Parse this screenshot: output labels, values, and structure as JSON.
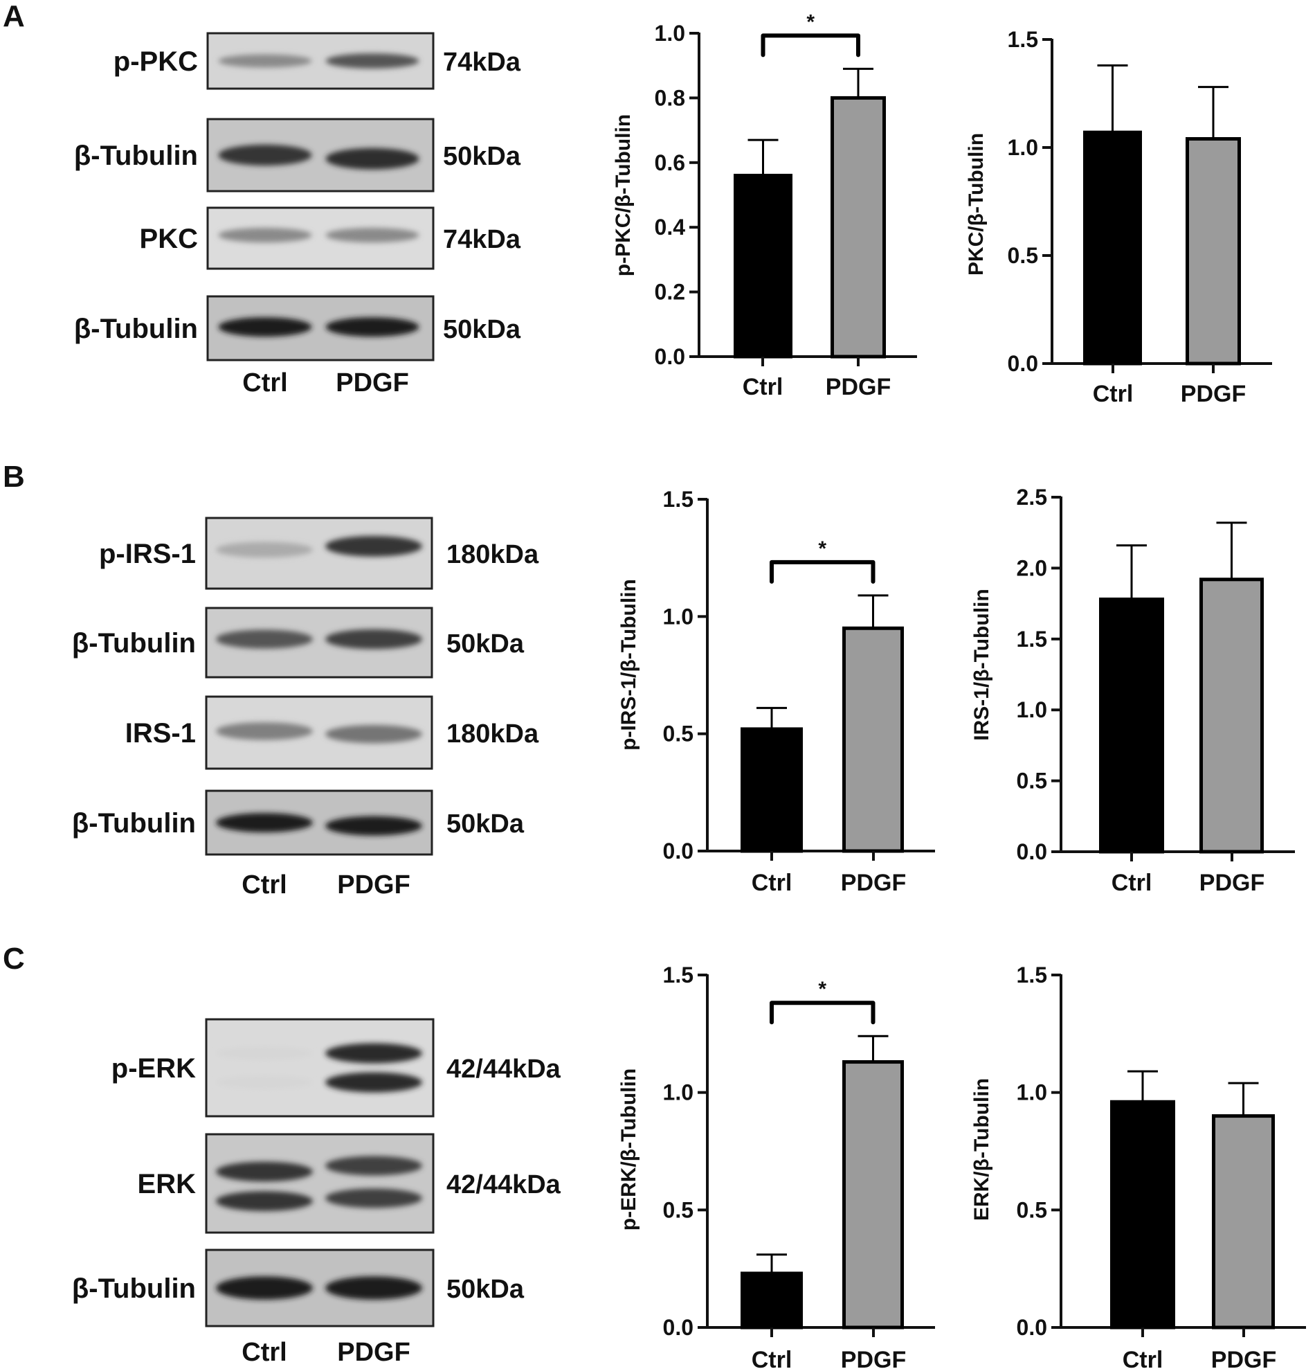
{
  "panels": [
    {
      "letter": "A",
      "blot": {
        "rows": [
          {
            "protein": "p-PKC",
            "mw": "74kDa",
            "lanes": [
              {
                "intensity": 0.45,
                "bands": [
                  0.5
                ]
              },
              {
                "intensity": 0.7,
                "bands": [
                  0.5
                ]
              }
            ]
          },
          {
            "protein": "β-Tubulin",
            "mw": "50kDa",
            "lanes": [
              {
                "intensity": 0.85,
                "bands": [
                  0.5
                ]
              },
              {
                "intensity": 0.88,
                "bands": [
                  0.55
                ]
              }
            ]
          },
          {
            "protein": "PKC",
            "mw": "74kDa",
            "lanes": [
              {
                "intensity": 0.45,
                "bands": [
                  0.45
                ]
              },
              {
                "intensity": 0.45,
                "bands": [
                  0.45
                ]
              }
            ]
          },
          {
            "protein": "β-Tubulin",
            "mw": "50kDa",
            "lanes": [
              {
                "intensity": 0.95,
                "bands": [
                  0.48
                ]
              },
              {
                "intensity": 0.95,
                "bands": [
                  0.48
                ]
              }
            ]
          }
        ],
        "lane_labels": [
          "Ctrl",
          "PDGF"
        ]
      }
    },
    {
      "letter": "B",
      "blot": {
        "rows": [
          {
            "protein": "p-IRS-1",
            "mw": "180kDa",
            "lanes": [
              {
                "intensity": 0.3,
                "bands": [
                  0.45
                ]
              },
              {
                "intensity": 0.85,
                "bands": [
                  0.4
                ]
              }
            ]
          },
          {
            "protein": "β-Tubulin",
            "mw": "50kDa",
            "lanes": [
              {
                "intensity": 0.7,
                "bands": [
                  0.45
                ]
              },
              {
                "intensity": 0.8,
                "bands": [
                  0.45
                ]
              }
            ]
          },
          {
            "protein": "IRS-1",
            "mw": "180kDa",
            "lanes": [
              {
                "intensity": 0.5,
                "bands": [
                  0.48
                ]
              },
              {
                "intensity": 0.55,
                "bands": [
                  0.52
                ]
              }
            ]
          },
          {
            "protein": "β-Tubulin",
            "mw": "50kDa",
            "lanes": [
              {
                "intensity": 0.95,
                "bands": [
                  0.5
                ]
              },
              {
                "intensity": 0.95,
                "bands": [
                  0.55
                ]
              }
            ]
          }
        ],
        "lane_labels": [
          "Ctrl",
          "PDGF"
        ]
      }
    },
    {
      "letter": "C",
      "blot": {
        "rows": [
          {
            "protein": "p-ERK",
            "mw": "42/44kDa",
            "lanes": [
              {
                "intensity": 0.1,
                "bands": [
                  0.35,
                  0.65
                ]
              },
              {
                "intensity": 0.9,
                "bands": [
                  0.35,
                  0.65
                ]
              }
            ]
          },
          {
            "protein": "ERK",
            "mw": "42/44kDa",
            "lanes": [
              {
                "intensity": 0.85,
                "bands": [
                  0.38,
                  0.68
                ]
              },
              {
                "intensity": 0.8,
                "bands": [
                  0.32,
                  0.65
                ]
              }
            ]
          },
          {
            "protein": "β-Tubulin",
            "mw": "50kDa",
            "lanes": [
              {
                "intensity": 0.95,
                "bands": [
                  0.5
                ]
              },
              {
                "intensity": 0.95,
                "bands": [
                  0.5
                ]
              }
            ]
          }
        ],
        "lane_labels": [
          "Ctrl",
          "PDGF"
        ]
      }
    }
  ],
  "colors": {
    "ctrl": "#000000",
    "pdgf": "#9b9b9b",
    "axis": "#111111"
  },
  "chart_data": [
    {
      "type": "bar",
      "panel": "A",
      "categories": [
        "Ctrl",
        "PDGF"
      ],
      "values": [
        0.56,
        0.8
      ],
      "errors": [
        0.11,
        0.09
      ],
      "ylabel": "p-PKC/β-Tubulin",
      "ylim": [
        0,
        1.0
      ],
      "yticks": [
        "0.0",
        "0.2",
        "0.4",
        "0.6",
        "0.8",
        "1.0"
      ],
      "significance": "*"
    },
    {
      "type": "bar",
      "panel": "A",
      "categories": [
        "Ctrl",
        "PDGF"
      ],
      "values": [
        1.07,
        1.04
      ],
      "errors": [
        0.31,
        0.24
      ],
      "ylabel": "PKC/β-Tubulin",
      "ylim": [
        0,
        1.5
      ],
      "yticks": [
        "0.0",
        "0.5",
        "1.0",
        "1.5"
      ],
      "significance": ""
    },
    {
      "type": "bar",
      "panel": "B",
      "categories": [
        "Ctrl",
        "PDGF"
      ],
      "values": [
        0.52,
        0.95
      ],
      "errors": [
        0.09,
        0.14
      ],
      "ylabel": "p-IRS-1/β-Tubulin",
      "ylim": [
        0,
        1.5
      ],
      "yticks": [
        "0.0",
        "0.5",
        "1.0",
        "1.5"
      ],
      "significance": "*"
    },
    {
      "type": "bar",
      "panel": "B",
      "categories": [
        "Ctrl",
        "PDGF"
      ],
      "values": [
        1.78,
        1.92
      ],
      "errors": [
        0.38,
        0.4
      ],
      "ylabel": "IRS-1/β-Tubulin",
      "ylim": [
        0,
        2.5
      ],
      "yticks": [
        "0.0",
        "0.5",
        "1.0",
        "1.5",
        "2.0",
        "2.5"
      ],
      "significance": ""
    },
    {
      "type": "bar",
      "panel": "C",
      "categories": [
        "Ctrl",
        "PDGF"
      ],
      "values": [
        0.23,
        1.13
      ],
      "errors": [
        0.08,
        0.11
      ],
      "ylabel": "p-ERK/β-Tubulin",
      "ylim": [
        0,
        1.5
      ],
      "yticks": [
        "0.0",
        "0.5",
        "1.0",
        "1.5"
      ],
      "significance": "*"
    },
    {
      "type": "bar",
      "panel": "C",
      "categories": [
        "Ctrl",
        "PDGF"
      ],
      "values": [
        0.96,
        0.9
      ],
      "errors": [
        0.13,
        0.14
      ],
      "ylabel": "ERK/β-Tubulin",
      "ylim": [
        0,
        1.5
      ],
      "yticks": [
        "0.0",
        "0.5",
        "1.0",
        "1.5"
      ],
      "significance": ""
    }
  ]
}
